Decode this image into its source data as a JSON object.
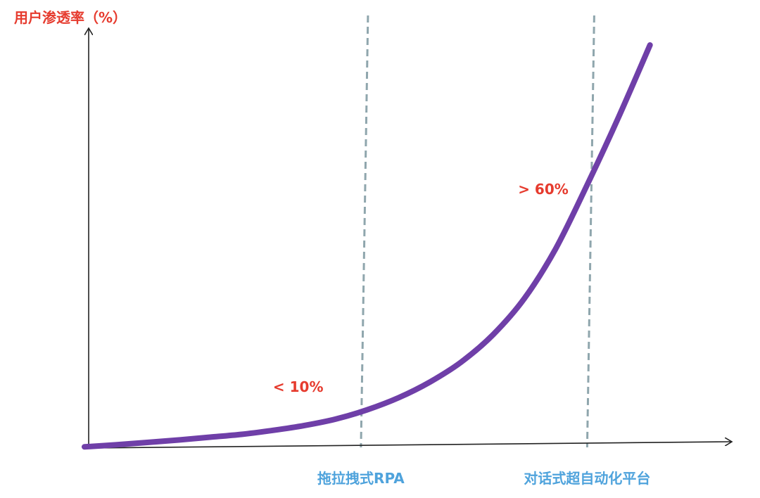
{
  "chart_data": {
    "type": "line",
    "title": "",
    "ylabel": "用户渗透率（%）",
    "xlabel": "",
    "grid": false,
    "legend": "none",
    "series": [
      {
        "values_note": "",
        "points": [
          [
            0.0,
            0.3
          ],
          [
            0.05,
            0.8
          ],
          [
            0.1,
            1.4
          ],
          [
            0.15,
            2.0
          ],
          [
            0.2,
            2.7
          ],
          [
            0.25,
            3.4
          ],
          [
            0.3,
            4.4
          ],
          [
            0.35,
            5.6
          ],
          [
            0.4,
            7.2
          ],
          [
            0.45,
            9.5
          ],
          [
            0.5,
            12.5
          ],
          [
            0.55,
            16.4
          ],
          [
            0.6,
            21.4
          ],
          [
            0.65,
            28.1
          ],
          [
            0.7,
            37.1
          ],
          [
            0.75,
            49.5
          ],
          [
            0.8,
            65.3
          ],
          [
            0.85,
            82.1
          ],
          [
            0.9,
            100.0
          ]
        ]
      }
    ],
    "xlim": [
      0,
      1
    ],
    "ylim": [
      0,
      110
    ],
    "annotations": [
      {
        "text": "< 10%",
        "x": 0.3,
        "y": 14
      },
      {
        "text": "> 60%",
        "x": 0.69,
        "y": 63
      }
    ],
    "stages": [
      {
        "label": "拖拉拽式RPA",
        "x": 0.44
      },
      {
        "label": "对话式超自动化平台",
        "x": 0.8
      }
    ],
    "colors": {
      "curve": "#6f3fa8",
      "axis": "#222222",
      "divider": "#8fa6ad",
      "annotation": "#e63b2e",
      "stage": "#4fa3dc",
      "ylabel": "#e63b2e"
    }
  }
}
